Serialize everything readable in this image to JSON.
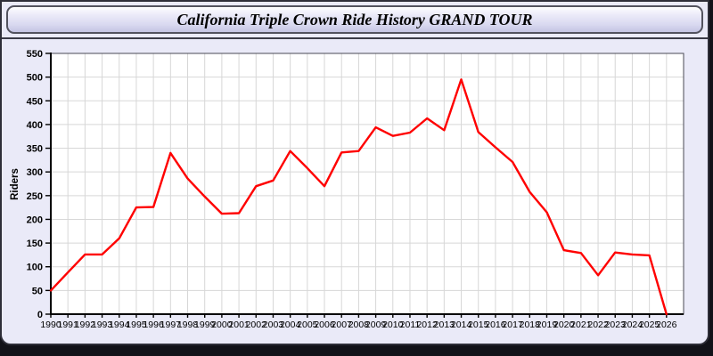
{
  "window": {
    "title": "California Triple Crown Ride History GRAND TOUR"
  },
  "colors": {
    "window_background": "#EAEAF8",
    "titlebar_gradient_top": "#FDFDFF",
    "titlebar_gradient_bottom": "#C4C4E3",
    "line_red": "#FF0000",
    "plot_background": "#FFFFFF",
    "grid": "#D7D7D7",
    "axis": "#000000",
    "outer_band": "#121218"
  },
  "chart_data": {
    "type": "line",
    "title": "California Triple Crown Ride History GRAND TOUR",
    "xlabel": "",
    "ylabel": "Riders",
    "x": [
      1990,
      1991,
      1992,
      1993,
      1994,
      1995,
      1996,
      1997,
      1998,
      1999,
      2000,
      2001,
      2002,
      2003,
      2004,
      2005,
      2006,
      2007,
      2008,
      2009,
      2010,
      2011,
      2012,
      2013,
      2014,
      2015,
      2016,
      2017,
      2018,
      2019,
      2020,
      2021,
      2022,
      2023,
      2024,
      2025,
      2026
    ],
    "series": [
      {
        "name": "Riders",
        "color": "#FF0000",
        "values": [
          50,
          88,
          126,
          126,
          160,
          225,
          226,
          340,
          286,
          248,
          212,
          213,
          270,
          282,
          344,
          308,
          270,
          341,
          344,
          394,
          376,
          383,
          413,
          388,
          495,
          384,
          352,
          321,
          258,
          215,
          135,
          129,
          82,
          130,
          126,
          124,
          0
        ]
      }
    ],
    "ylim": [
      0,
      550
    ],
    "yticks": [
      0,
      50,
      100,
      150,
      200,
      250,
      300,
      350,
      400,
      450,
      500,
      550
    ],
    "grid": true,
    "legend_position": "none"
  }
}
